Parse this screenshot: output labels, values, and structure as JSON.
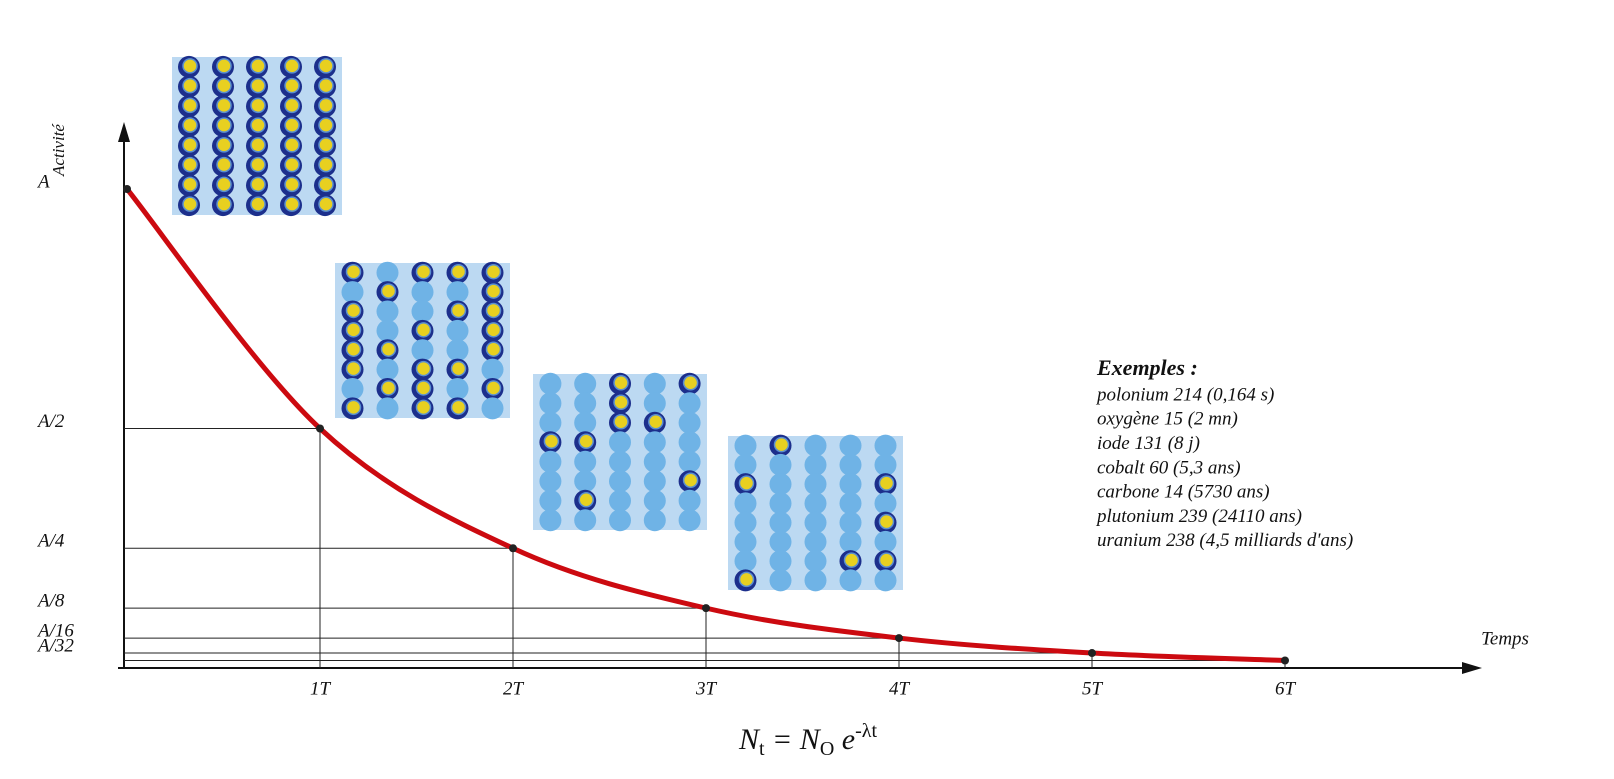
{
  "chart_data": {
    "type": "line",
    "y_label": "Activité",
    "x_label": "Temps",
    "x": [
      0,
      1,
      2,
      3,
      4,
      5,
      6
    ],
    "values": [
      1,
      0.5,
      0.25,
      0.125,
      0.0625,
      0.03125,
      0.015625
    ],
    "color": "#cc0a10",
    "xlim": [
      0,
      6
    ],
    "ylim": [
      0,
      1
    ],
    "xticks": [
      {
        "value": 1,
        "label": "1T"
      },
      {
        "value": 2,
        "label": "2T"
      },
      {
        "value": 3,
        "label": "3T"
      },
      {
        "value": 4,
        "label": "4T"
      },
      {
        "value": 5,
        "label": "5T"
      },
      {
        "value": 6,
        "label": "6T"
      }
    ],
    "yticks": [
      {
        "value": 1,
        "label": "A"
      },
      {
        "value": 0.5,
        "label": "A/2"
      },
      {
        "value": 0.25,
        "label": "A/4"
      },
      {
        "value": 0.125,
        "label": "A/8"
      },
      {
        "value": 0.0625,
        "label": "A/16"
      },
      {
        "value": 0.03125,
        "label": "A/32"
      }
    ],
    "examples_title": "Exemples :",
    "examples": [
      "polonium 214 (0,164 s)",
      "oxygène 15 (2 mn)",
      "iode 131 (8 j)",
      "cobalt 60 (5,3 ans)",
      "carbone 14 (5730 ans)",
      "plutonium 239 (24110 ans)",
      "uranium 238 (4,5 milliards d'ans)"
    ],
    "formula": [
      "N",
      "t",
      " = N",
      "O",
      " e",
      "-λt"
    ]
  }
}
